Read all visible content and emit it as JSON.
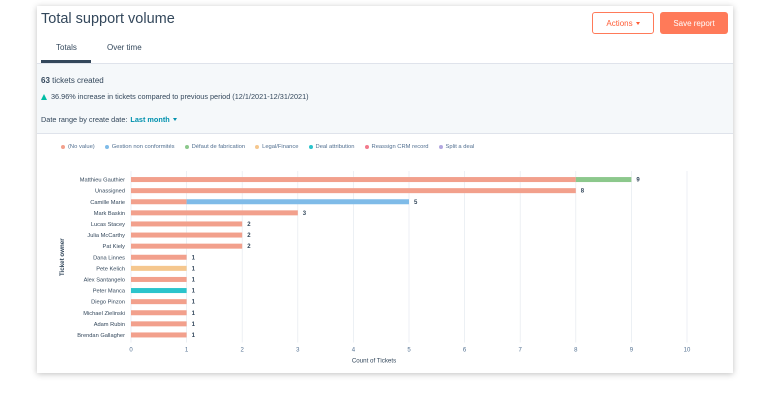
{
  "header": {
    "title": "Total support volume",
    "actions_label": "Actions",
    "save_label": "Save report"
  },
  "tabs": [
    {
      "label": "Totals",
      "active": true
    },
    {
      "label": "Over time",
      "active": false
    }
  ],
  "summary": {
    "count": "63",
    "count_suffix": "tickets created",
    "increase_text": "36.96% increase in tickets compared to previous period (12/1/2021-12/31/2021)",
    "date_range_label": "Date range by create date:",
    "date_range_value": "Last month"
  },
  "colors": {
    "accent": "#ff7a59",
    "up": "#00bda5",
    "link": "#0091ae"
  },
  "chart_data": {
    "type": "bar",
    "orientation": "horizontal",
    "stacked": true,
    "ylabel": "Ticket owner",
    "xlabel": "Count of Tickets",
    "xlim": [
      0,
      10
    ],
    "xticks": [
      0,
      1,
      2,
      3,
      4,
      5,
      6,
      7,
      8,
      9,
      10
    ],
    "grid": true,
    "legend_position": "top",
    "categories": [
      "Matthieu Gauthier",
      "Unassigned",
      "Camille Marie",
      "Mark Baskin",
      "Lucas Stacey",
      "Julia McCarthy",
      "Pat Kiely",
      "Dana Linnes",
      "Pete Kelich",
      "Alex Santangelo",
      "Peter Manca",
      "Diego Pinzon",
      "Michael Zielinski",
      "Adam Rubin",
      "Brendan Gallagher"
    ],
    "totals": [
      9,
      8,
      5,
      3,
      2,
      2,
      2,
      1,
      1,
      1,
      1,
      1,
      1,
      1,
      1
    ],
    "series": [
      {
        "name": "(No value)",
        "color": "#f2a08c",
        "values": [
          8,
          8,
          1,
          3,
          2,
          2,
          2,
          1,
          0,
          1,
          0,
          1,
          1,
          1,
          1
        ]
      },
      {
        "name": "Gestion non conformités",
        "color": "#7fbbe8",
        "values": [
          0,
          0,
          4,
          0,
          0,
          0,
          0,
          0,
          0,
          0,
          0,
          0,
          0,
          0,
          0
        ]
      },
      {
        "name": "Défaut de fabrication",
        "color": "#8cc88c",
        "values": [
          1,
          0,
          0,
          0,
          0,
          0,
          0,
          0,
          0,
          0,
          0,
          0,
          0,
          0,
          0
        ]
      },
      {
        "name": "Legal/Finance",
        "color": "#f5c78e",
        "values": [
          0,
          0,
          0,
          0,
          0,
          0,
          0,
          0,
          1,
          0,
          0,
          0,
          0,
          0,
          0
        ]
      },
      {
        "name": "Deal attribution",
        "color": "#2bc4cc",
        "values": [
          0,
          0,
          0,
          0,
          0,
          0,
          0,
          0,
          0,
          0,
          1,
          0,
          0,
          0,
          0
        ]
      },
      {
        "name": "Reassign CRM record",
        "color": "#f27a8c",
        "values": [
          0,
          0,
          0,
          0,
          0,
          0,
          0,
          0,
          0,
          0,
          0,
          0,
          0,
          0,
          0
        ]
      },
      {
        "name": "Split a deal",
        "color": "#b3a8e0",
        "values": [
          0,
          0,
          0,
          0,
          0,
          0,
          0,
          0,
          0,
          0,
          0,
          0,
          0,
          0,
          0
        ]
      }
    ]
  }
}
